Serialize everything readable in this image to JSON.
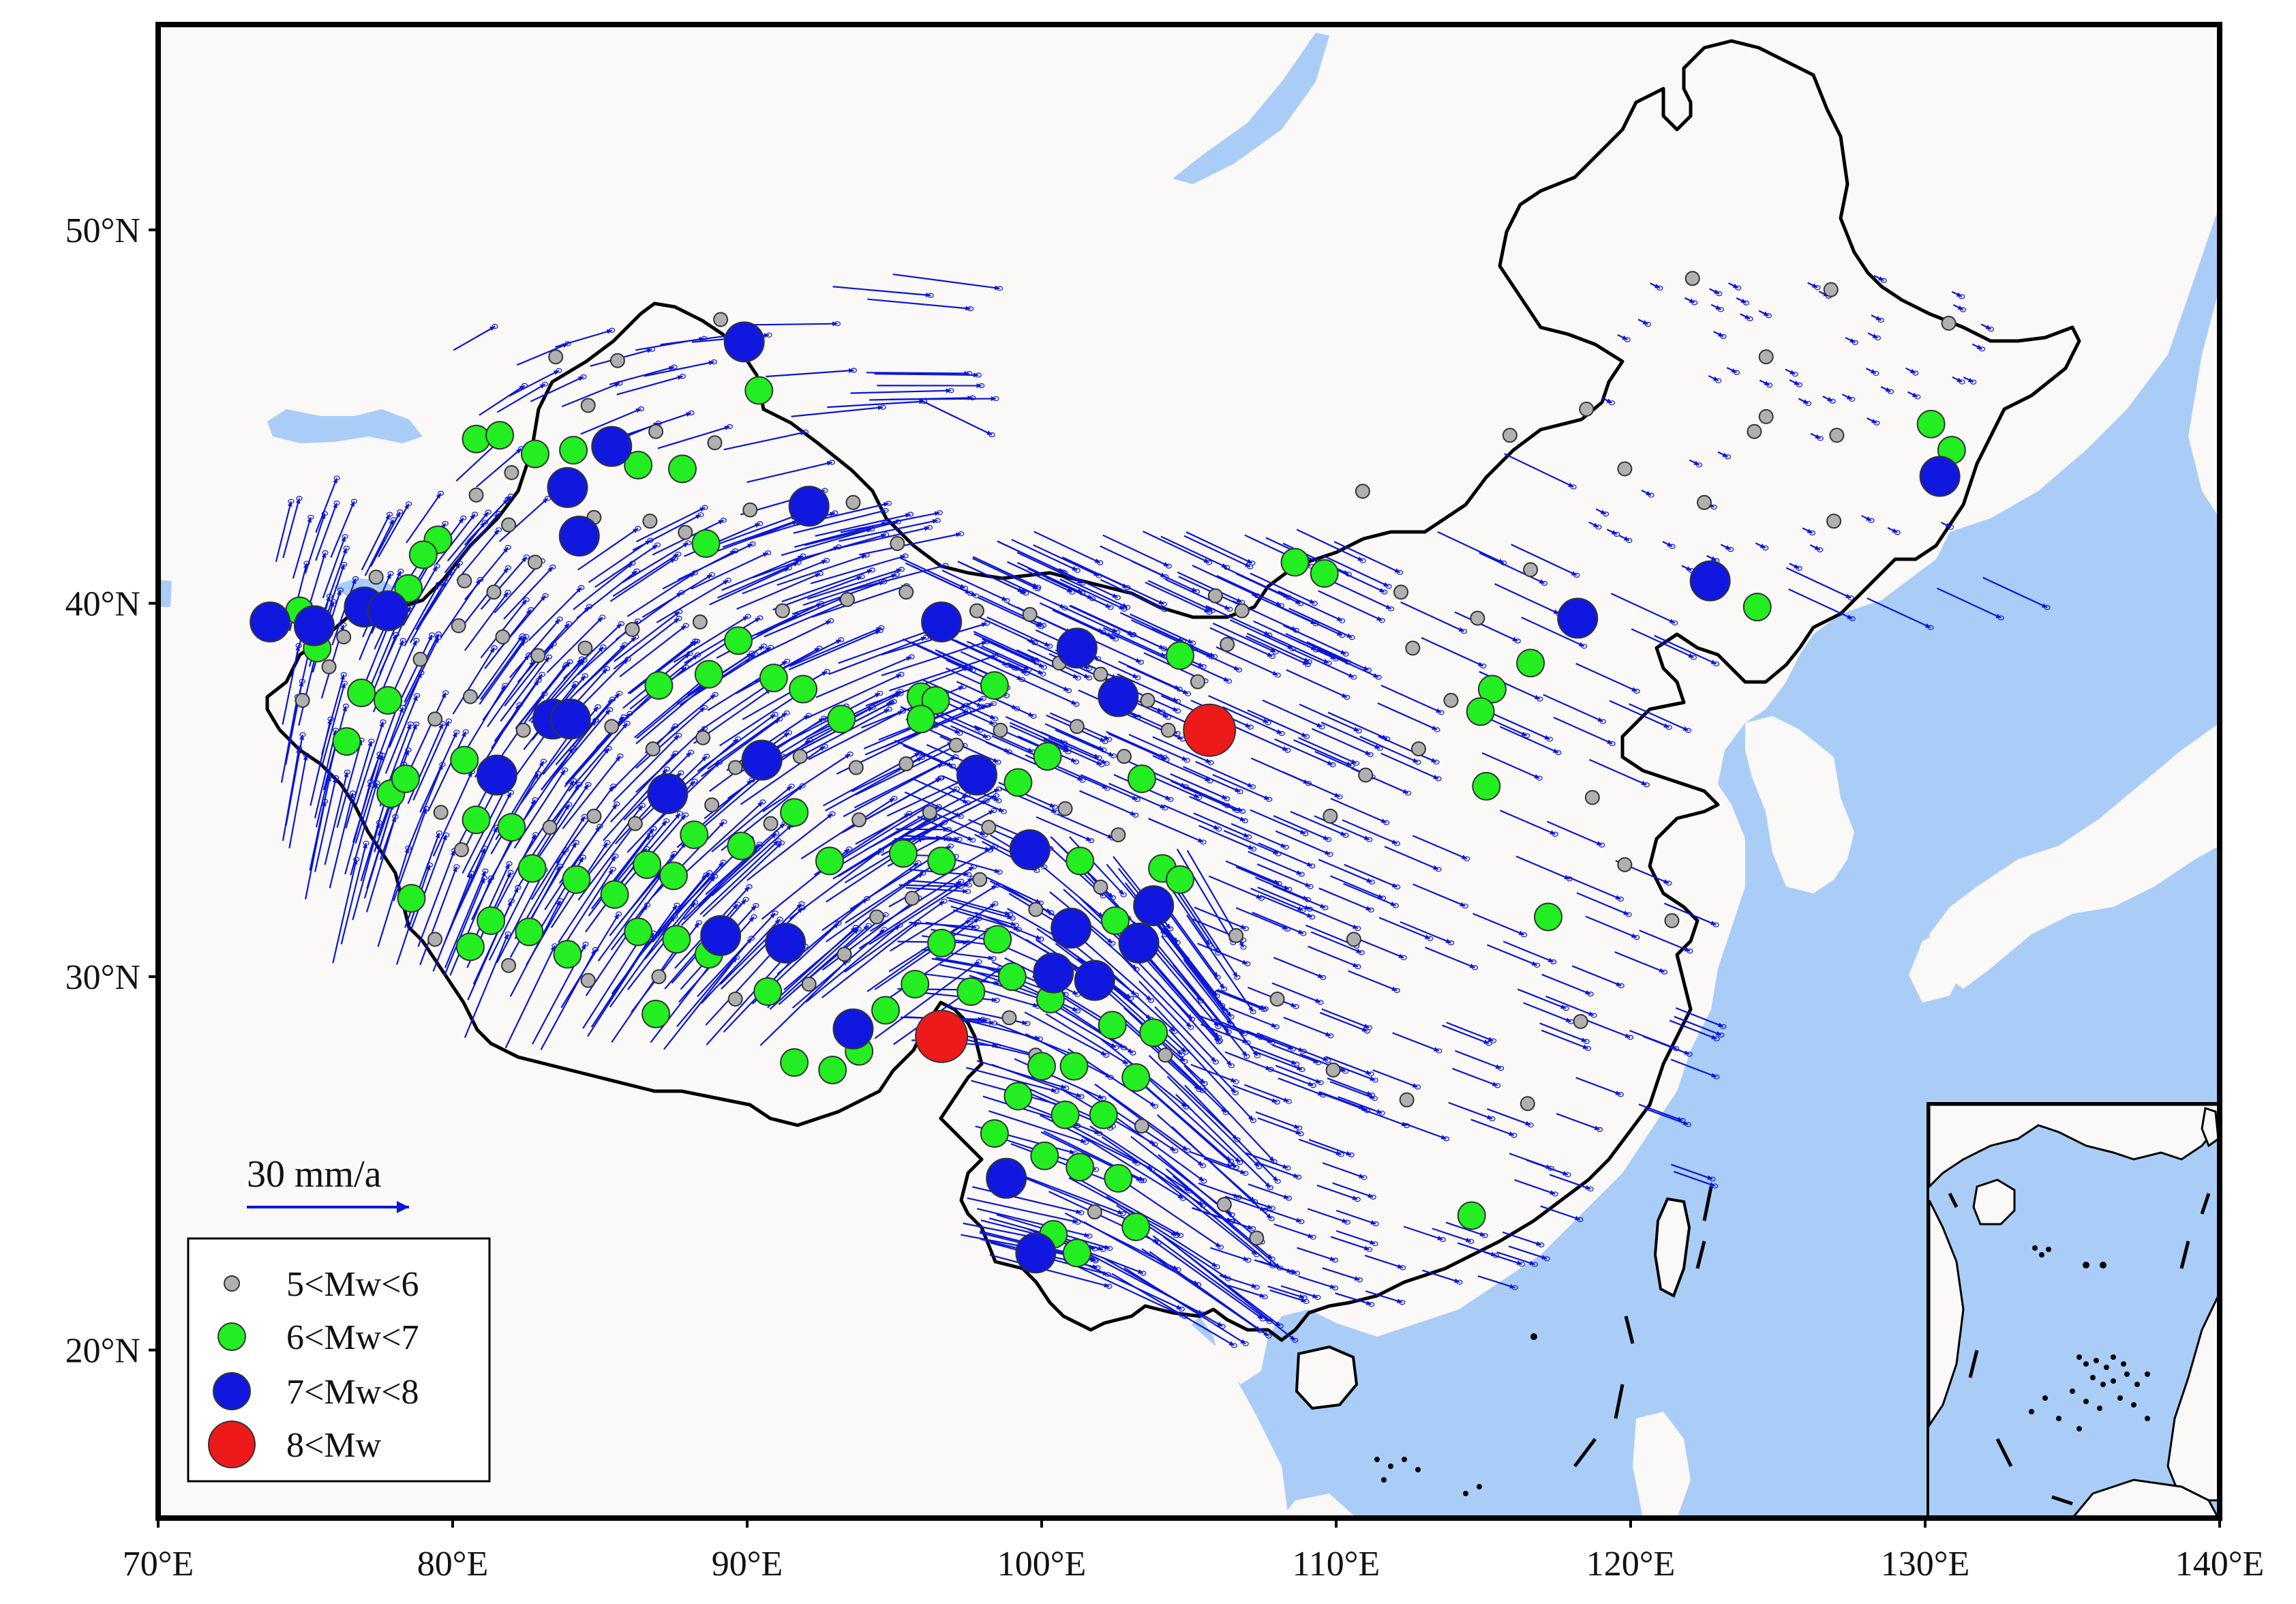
{
  "map": {
    "lon_range": [
      70,
      140
    ],
    "lat_range": [
      15.5,
      55.5
    ],
    "colors": {
      "land": "#fbf8f8",
      "water": "#a9cdf7",
      "border": "#000000",
      "vector": "#0a16d6",
      "quake_small": "#b0b0b0",
      "quake_medium": "#22ee22",
      "quake_large": "#1018e0",
      "quake_great": "#ee1a1a"
    },
    "x_ticks": [
      {
        "value": 70,
        "label": "70°E"
      },
      {
        "value": 80,
        "label": "80°E"
      },
      {
        "value": 90,
        "label": "90°E"
      },
      {
        "value": 100,
        "label": "100°E"
      },
      {
        "value": 110,
        "label": "110°E"
      },
      {
        "value": 120,
        "label": "120°E"
      },
      {
        "value": 130,
        "label": "130°E"
      },
      {
        "value": 140,
        "label": "140°E"
      }
    ],
    "y_ticks": [
      {
        "value": 20,
        "label": "20°N"
      },
      {
        "value": 30,
        "label": "30°N"
      },
      {
        "value": 40,
        "label": "40°N"
      },
      {
        "value": 50,
        "label": "50°N"
      }
    ],
    "scale_bar": {
      "label": "30 mm/a",
      "value_mm_per_year": 30
    },
    "legend": [
      {
        "label": "5<Mw<6",
        "class": "small"
      },
      {
        "label": "6<Mw<7",
        "class": "medium"
      },
      {
        "label": "7<Mw<8",
        "class": "large"
      },
      {
        "label": "8<Mw",
        "class": "great"
      }
    ],
    "great_earthquakes": [
      {
        "lon": 105.7,
        "lat": 36.6
      },
      {
        "lon": 96.6,
        "lat": 28.4
      }
    ],
    "large_earthquakes": [
      {
        "lon": 89.9,
        "lat": 47.0
      },
      {
        "lon": 92.1,
        "lat": 42.6
      },
      {
        "lon": 85.4,
        "lat": 44.2
      },
      {
        "lon": 83.9,
        "lat": 43.1
      },
      {
        "lon": 84.3,
        "lat": 41.8
      },
      {
        "lon": 73.8,
        "lat": 39.5
      },
      {
        "lon": 75.3,
        "lat": 39.4
      },
      {
        "lon": 77.0,
        "lat": 39.9
      },
      {
        "lon": 77.8,
        "lat": 39.8
      },
      {
        "lon": 83.4,
        "lat": 36.9
      },
      {
        "lon": 84.0,
        "lat": 36.9
      },
      {
        "lon": 81.5,
        "lat": 35.4
      },
      {
        "lon": 87.3,
        "lat": 34.9
      },
      {
        "lon": 90.5,
        "lat": 35.8
      },
      {
        "lon": 96.6,
        "lat": 39.5
      },
      {
        "lon": 101.2,
        "lat": 38.8
      },
      {
        "lon": 102.6,
        "lat": 37.5
      },
      {
        "lon": 97.8,
        "lat": 35.4
      },
      {
        "lon": 99.6,
        "lat": 33.4
      },
      {
        "lon": 103.8,
        "lat": 31.9
      },
      {
        "lon": 101.0,
        "lat": 31.3
      },
      {
        "lon": 100.4,
        "lat": 30.1
      },
      {
        "lon": 101.8,
        "lat": 29.9
      },
      {
        "lon": 103.3,
        "lat": 30.9
      },
      {
        "lon": 91.3,
        "lat": 30.9
      },
      {
        "lon": 89.1,
        "lat": 31.1
      },
      {
        "lon": 93.6,
        "lat": 28.6
      },
      {
        "lon": 98.8,
        "lat": 24.6
      },
      {
        "lon": 99.8,
        "lat": 22.6
      },
      {
        "lon": 118.2,
        "lat": 39.6
      },
      {
        "lon": 122.7,
        "lat": 40.6
      },
      {
        "lon": 130.5,
        "lat": 43.4
      }
    ],
    "medium_earthquakes": [
      {
        "lon": 90.4,
        "lat": 45.7
      },
      {
        "lon": 80.8,
        "lat": 44.4
      },
      {
        "lon": 81.6,
        "lat": 44.5
      },
      {
        "lon": 82.8,
        "lat": 44.0
      },
      {
        "lon": 84.1,
        "lat": 44.1
      },
      {
        "lon": 86.3,
        "lat": 43.7
      },
      {
        "lon": 87.8,
        "lat": 43.6
      },
      {
        "lon": 79.5,
        "lat": 41.7
      },
      {
        "lon": 79.0,
        "lat": 41.3
      },
      {
        "lon": 78.5,
        "lat": 40.4
      },
      {
        "lon": 74.8,
        "lat": 39.8
      },
      {
        "lon": 75.4,
        "lat": 38.8
      },
      {
        "lon": 76.9,
        "lat": 37.6
      },
      {
        "lon": 77.8,
        "lat": 37.4
      },
      {
        "lon": 76.4,
        "lat": 36.3
      },
      {
        "lon": 77.9,
        "lat": 34.9
      },
      {
        "lon": 78.4,
        "lat": 35.3
      },
      {
        "lon": 80.4,
        "lat": 35.8
      },
      {
        "lon": 80.8,
        "lat": 34.2
      },
      {
        "lon": 82.0,
        "lat": 34.0
      },
      {
        "lon": 82.7,
        "lat": 32.9
      },
      {
        "lon": 84.2,
        "lat": 32.6
      },
      {
        "lon": 85.5,
        "lat": 32.2
      },
      {
        "lon": 81.3,
        "lat": 31.5
      },
      {
        "lon": 82.6,
        "lat": 31.2
      },
      {
        "lon": 83.9,
        "lat": 30.6
      },
      {
        "lon": 78.6,
        "lat": 32.1
      },
      {
        "lon": 80.6,
        "lat": 30.8
      },
      {
        "lon": 86.3,
        "lat": 31.2
      },
      {
        "lon": 87.6,
        "lat": 31.0
      },
      {
        "lon": 88.7,
        "lat": 30.6
      },
      {
        "lon": 86.9,
        "lat": 29.0
      },
      {
        "lon": 87.5,
        "lat": 32.7
      },
      {
        "lon": 86.6,
        "lat": 33.0
      },
      {
        "lon": 88.2,
        "lat": 33.8
      },
      {
        "lon": 89.8,
        "lat": 33.5
      },
      {
        "lon": 87.0,
        "lat": 37.8
      },
      {
        "lon": 88.7,
        "lat": 38.1
      },
      {
        "lon": 89.7,
        "lat": 39.0
      },
      {
        "lon": 90.9,
        "lat": 38.0
      },
      {
        "lon": 91.9,
        "lat": 37.7
      },
      {
        "lon": 93.2,
        "lat": 36.9
      },
      {
        "lon": 95.9,
        "lat": 37.5
      },
      {
        "lon": 96.4,
        "lat": 37.4
      },
      {
        "lon": 95.9,
        "lat": 36.9
      },
      {
        "lon": 98.4,
        "lat": 37.8
      },
      {
        "lon": 99.2,
        "lat": 35.2
      },
      {
        "lon": 100.2,
        "lat": 35.9
      },
      {
        "lon": 103.4,
        "lat": 35.3
      },
      {
        "lon": 101.3,
        "lat": 33.1
      },
      {
        "lon": 104.1,
        "lat": 32.9
      },
      {
        "lon": 104.7,
        "lat": 32.6
      },
      {
        "lon": 102.5,
        "lat": 31.5
      },
      {
        "lon": 98.5,
        "lat": 31.0
      },
      {
        "lon": 96.6,
        "lat": 30.9
      },
      {
        "lon": 95.7,
        "lat": 29.8
      },
      {
        "lon": 94.7,
        "lat": 29.1
      },
      {
        "lon": 97.6,
        "lat": 29.6
      },
      {
        "lon": 99.0,
        "lat": 30.0
      },
      {
        "lon": 100.3,
        "lat": 29.4
      },
      {
        "lon": 102.4,
        "lat": 28.7
      },
      {
        "lon": 103.8,
        "lat": 28.5
      },
      {
        "lon": 101.1,
        "lat": 27.6
      },
      {
        "lon": 100.0,
        "lat": 27.6
      },
      {
        "lon": 99.2,
        "lat": 26.8
      },
      {
        "lon": 100.8,
        "lat": 26.3
      },
      {
        "lon": 102.1,
        "lat": 26.3
      },
      {
        "lon": 103.2,
        "lat": 27.3
      },
      {
        "lon": 100.1,
        "lat": 25.2
      },
      {
        "lon": 101.3,
        "lat": 24.9
      },
      {
        "lon": 102.6,
        "lat": 24.6
      },
      {
        "lon": 98.4,
        "lat": 25.8
      },
      {
        "lon": 100.4,
        "lat": 23.1
      },
      {
        "lon": 101.2,
        "lat": 22.6
      },
      {
        "lon": 103.2,
        "lat": 23.3
      },
      {
        "lon": 91.6,
        "lat": 34.4
      },
      {
        "lon": 92.8,
        "lat": 33.1
      },
      {
        "lon": 95.3,
        "lat": 33.3
      },
      {
        "lon": 96.6,
        "lat": 33.1
      },
      {
        "lon": 90.7,
        "lat": 29.6
      },
      {
        "lon": 92.9,
        "lat": 27.5
      },
      {
        "lon": 91.6,
        "lat": 27.7
      },
      {
        "lon": 104.7,
        "lat": 38.6
      },
      {
        "lon": 108.6,
        "lat": 41.1
      },
      {
        "lon": 109.6,
        "lat": 40.8
      },
      {
        "lon": 115.3,
        "lat": 37.7
      },
      {
        "lon": 114.9,
        "lat": 37.1
      },
      {
        "lon": 115.1,
        "lat": 35.1
      },
      {
        "lon": 116.6,
        "lat": 38.4
      },
      {
        "lon": 117.2,
        "lat": 31.6
      },
      {
        "lon": 114.6,
        "lat": 23.6
      },
      {
        "lon": 124.3,
        "lat": 39.9
      },
      {
        "lon": 130.2,
        "lat": 44.8
      },
      {
        "lon": 130.9,
        "lat": 44.1
      },
      {
        "lon": 88.6,
        "lat": 41.6
      },
      {
        "lon": 93.8,
        "lat": 28.0
      }
    ],
    "small_earthquakes": [
      {
        "lon": 89.1,
        "lat": 47.6
      },
      {
        "lon": 85.6,
        "lat": 46.5
      },
      {
        "lon": 83.5,
        "lat": 46.6
      },
      {
        "lon": 86.9,
        "lat": 44.6
      },
      {
        "lon": 88.9,
        "lat": 44.3
      },
      {
        "lon": 84.6,
        "lat": 45.3
      },
      {
        "lon": 82.0,
        "lat": 43.5
      },
      {
        "lon": 80.8,
        "lat": 42.9
      },
      {
        "lon": 81.9,
        "lat": 42.1
      },
      {
        "lon": 84.8,
        "lat": 42.3
      },
      {
        "lon": 86.7,
        "lat": 42.2
      },
      {
        "lon": 87.9,
        "lat": 41.9
      },
      {
        "lon": 90.1,
        "lat": 42.5
      },
      {
        "lon": 93.6,
        "lat": 42.7
      },
      {
        "lon": 95.1,
        "lat": 41.6
      },
      {
        "lon": 80.4,
        "lat": 40.6
      },
      {
        "lon": 81.4,
        "lat": 40.3
      },
      {
        "lon": 82.8,
        "lat": 41.1
      },
      {
        "lon": 77.4,
        "lat": 40.7
      },
      {
        "lon": 76.3,
        "lat": 39.1
      },
      {
        "lon": 75.8,
        "lat": 38.3
      },
      {
        "lon": 74.9,
        "lat": 37.4
      },
      {
        "lon": 78.9,
        "lat": 38.5
      },
      {
        "lon": 80.2,
        "lat": 39.4
      },
      {
        "lon": 81.7,
        "lat": 39.1
      },
      {
        "lon": 82.9,
        "lat": 38.6
      },
      {
        "lon": 84.5,
        "lat": 38.8
      },
      {
        "lon": 86.1,
        "lat": 39.3
      },
      {
        "lon": 88.4,
        "lat": 39.5
      },
      {
        "lon": 91.2,
        "lat": 39.8
      },
      {
        "lon": 93.4,
        "lat": 40.1
      },
      {
        "lon": 95.4,
        "lat": 40.3
      },
      {
        "lon": 97.8,
        "lat": 39.8
      },
      {
        "lon": 99.6,
        "lat": 39.7
      },
      {
        "lon": 100.6,
        "lat": 38.4
      },
      {
        "lon": 102.0,
        "lat": 38.1
      },
      {
        "lon": 103.6,
        "lat": 37.4
      },
      {
        "lon": 104.3,
        "lat": 36.6
      },
      {
        "lon": 105.3,
        "lat": 37.9
      },
      {
        "lon": 106.3,
        "lat": 38.9
      },
      {
        "lon": 106.8,
        "lat": 39.8
      },
      {
        "lon": 105.9,
        "lat": 40.2
      },
      {
        "lon": 79.4,
        "lat": 36.9
      },
      {
        "lon": 80.6,
        "lat": 37.5
      },
      {
        "lon": 82.4,
        "lat": 36.6
      },
      {
        "lon": 85.4,
        "lat": 36.7
      },
      {
        "lon": 86.8,
        "lat": 36.1
      },
      {
        "lon": 88.5,
        "lat": 36.4
      },
      {
        "lon": 89.6,
        "lat": 35.6
      },
      {
        "lon": 91.8,
        "lat": 35.9
      },
      {
        "lon": 93.7,
        "lat": 35.6
      },
      {
        "lon": 95.4,
        "lat": 35.7
      },
      {
        "lon": 97.1,
        "lat": 36.2
      },
      {
        "lon": 98.6,
        "lat": 36.6
      },
      {
        "lon": 101.2,
        "lat": 36.7
      },
      {
        "lon": 102.8,
        "lat": 35.9
      },
      {
        "lon": 79.6,
        "lat": 34.4
      },
      {
        "lon": 80.3,
        "lat": 33.4
      },
      {
        "lon": 83.3,
        "lat": 34.0
      },
      {
        "lon": 84.8,
        "lat": 34.3
      },
      {
        "lon": 86.2,
        "lat": 34.1
      },
      {
        "lon": 88.8,
        "lat": 34.6
      },
      {
        "lon": 90.8,
        "lat": 34.1
      },
      {
        "lon": 93.8,
        "lat": 34.2
      },
      {
        "lon": 96.2,
        "lat": 34.4
      },
      {
        "lon": 98.2,
        "lat": 34.0
      },
      {
        "lon": 100.8,
        "lat": 34.5
      },
      {
        "lon": 102.6,
        "lat": 33.8
      },
      {
        "lon": 79.4,
        "lat": 31.0
      },
      {
        "lon": 81.9,
        "lat": 30.3
      },
      {
        "lon": 84.6,
        "lat": 29.9
      },
      {
        "lon": 87.0,
        "lat": 30.0
      },
      {
        "lon": 89.6,
        "lat": 29.4
      },
      {
        "lon": 92.1,
        "lat": 29.8
      },
      {
        "lon": 93.3,
        "lat": 30.6
      },
      {
        "lon": 94.4,
        "lat": 31.6
      },
      {
        "lon": 95.6,
        "lat": 32.1
      },
      {
        "lon": 97.9,
        "lat": 32.6
      },
      {
        "lon": 99.8,
        "lat": 31.8
      },
      {
        "lon": 102.0,
        "lat": 32.4
      },
      {
        "lon": 98.9,
        "lat": 28.9
      },
      {
        "lon": 99.8,
        "lat": 27.9
      },
      {
        "lon": 103.4,
        "lat": 26.0
      },
      {
        "lon": 104.2,
        "lat": 27.9
      },
      {
        "lon": 101.8,
        "lat": 23.7
      },
      {
        "lon": 106.2,
        "lat": 23.9
      },
      {
        "lon": 107.3,
        "lat": 23.0
      },
      {
        "lon": 110.6,
        "lat": 31.0
      },
      {
        "lon": 109.8,
        "lat": 34.3
      },
      {
        "lon": 111.0,
        "lat": 35.4
      },
      {
        "lon": 112.8,
        "lat": 36.1
      },
      {
        "lon": 113.9,
        "lat": 37.4
      },
      {
        "lon": 112.6,
        "lat": 38.8
      },
      {
        "lon": 114.8,
        "lat": 39.6
      },
      {
        "lon": 116.6,
        "lat": 40.9
      },
      {
        "lon": 112.2,
        "lat": 40.3
      },
      {
        "lon": 118.7,
        "lat": 34.8
      },
      {
        "lon": 119.8,
        "lat": 33.0
      },
      {
        "lon": 121.4,
        "lat": 31.5
      },
      {
        "lon": 118.3,
        "lat": 28.8
      },
      {
        "lon": 116.5,
        "lat": 26.6
      },
      {
        "lon": 112.4,
        "lat": 26.7
      },
      {
        "lon": 109.9,
        "lat": 27.5
      },
      {
        "lon": 108.0,
        "lat": 29.4
      },
      {
        "lon": 106.6,
        "lat": 31.1
      },
      {
        "lon": 122.1,
        "lat": 48.7
      },
      {
        "lon": 126.8,
        "lat": 48.4
      },
      {
        "lon": 130.8,
        "lat": 47.5
      },
      {
        "lon": 124.6,
        "lat": 46.6
      },
      {
        "lon": 118.5,
        "lat": 45.2
      },
      {
        "lon": 115.9,
        "lat": 44.5
      },
      {
        "lon": 119.8,
        "lat": 43.6
      },
      {
        "lon": 124.2,
        "lat": 44.6
      },
      {
        "lon": 124.6,
        "lat": 45.0
      },
      {
        "lon": 127.0,
        "lat": 44.5
      },
      {
        "lon": 122.5,
        "lat": 42.7
      },
      {
        "lon": 126.9,
        "lat": 42.2
      },
      {
        "lon": 110.9,
        "lat": 43.0
      }
    ]
  }
}
